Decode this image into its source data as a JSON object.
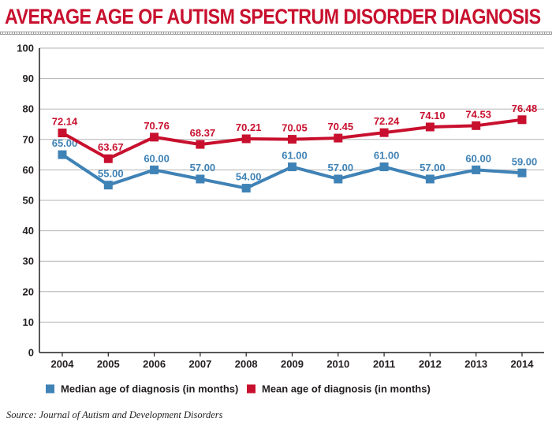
{
  "chart_data": {
    "type": "line",
    "title": "AVERAGE AGE OF AUTISM SPECTRUM DISORDER DIAGNOSIS",
    "categories": [
      "2004",
      "2005",
      "2006",
      "2007",
      "2008",
      "2009",
      "2010",
      "2011",
      "2012",
      "2013",
      "2014"
    ],
    "ylim": [
      0,
      100
    ],
    "yticks": [
      "0",
      "10",
      "20",
      "30",
      "40",
      "50",
      "60",
      "70",
      "80",
      "90",
      "100"
    ],
    "grid": true,
    "legend_position": "bottom-left",
    "series": [
      {
        "name": "Median age of diagnosis (in months)",
        "color": "#3f82b6",
        "values": [
          65.0,
          55.0,
          60.0,
          57.0,
          54.0,
          61.0,
          57.0,
          61.0,
          57.0,
          60.0,
          59.0
        ],
        "labels": [
          "65.00",
          "55.00",
          "60.00",
          "57.00",
          "54.00",
          "61.00",
          "57.00",
          "61.00",
          "57.00",
          "60.00",
          "59.00"
        ]
      },
      {
        "name": "Mean age of diagnosis (in months)",
        "color": "#c8102e",
        "values": [
          72.14,
          63.67,
          70.76,
          68.37,
          70.21,
          70.05,
          70.45,
          72.24,
          74.1,
          74.53,
          76.48
        ],
        "labels": [
          "72.14",
          "63.67",
          "70.76",
          "68.37",
          "70.21",
          "70.05",
          "70.45",
          "72.24",
          "74.10",
          "74.53",
          "76.48"
        ]
      }
    ],
    "source": "Source: Journal of Autism and Development Disorders"
  }
}
